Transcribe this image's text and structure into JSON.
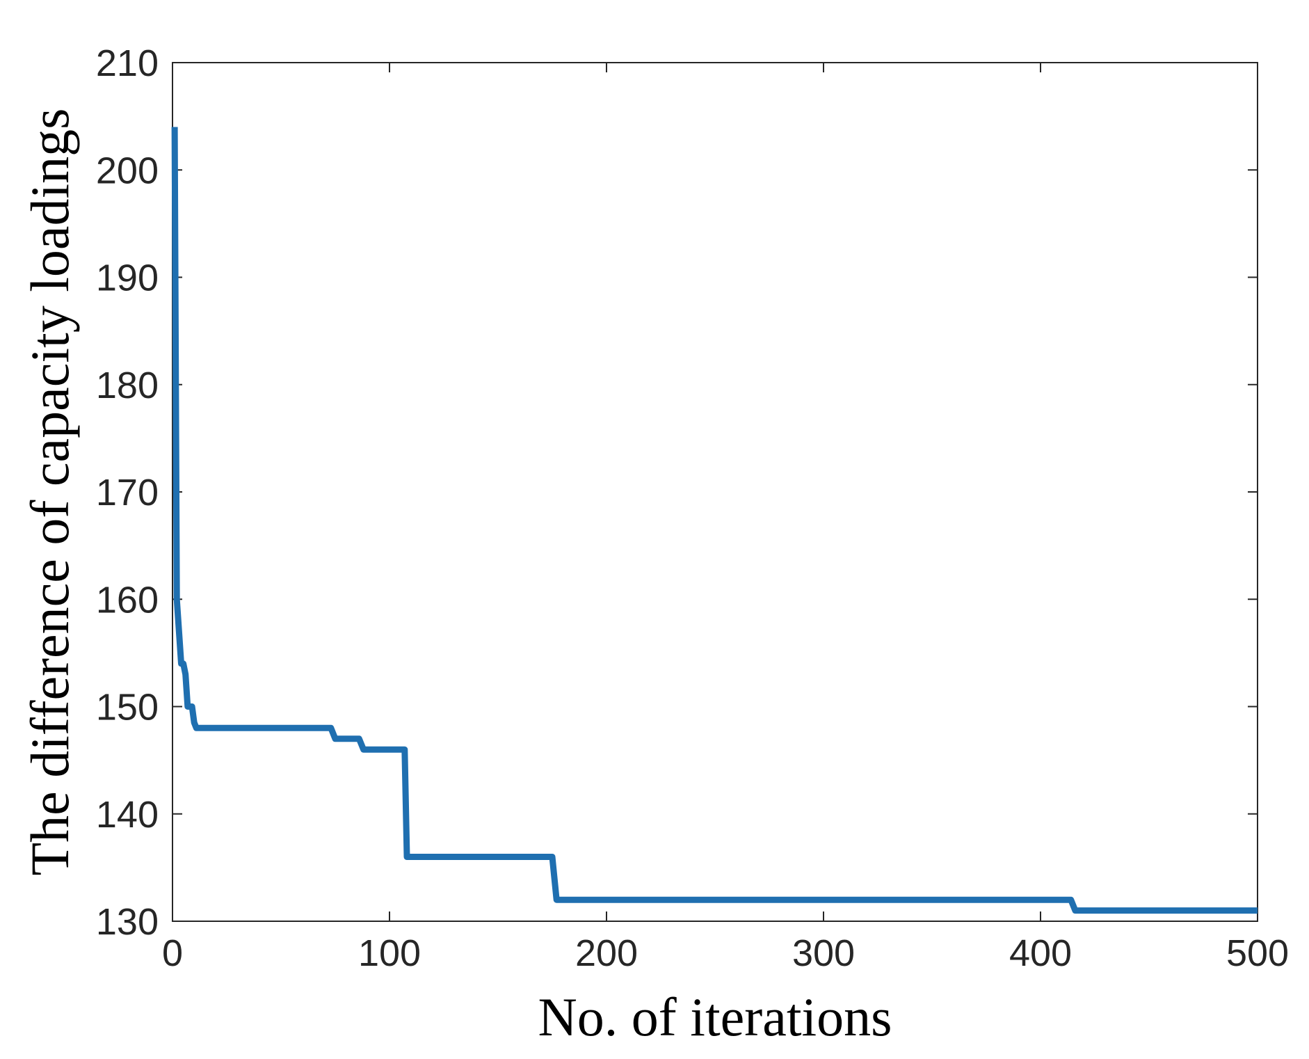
{
  "chart_data": {
    "type": "line",
    "title": "",
    "xlabel": "No. of iterations",
    "ylabel": "The difference of capacity loadings",
    "xlim": [
      0,
      500
    ],
    "ylim": [
      130,
      210
    ],
    "xticks": [
      0,
      100,
      200,
      300,
      400,
      500
    ],
    "yticks": [
      130,
      140,
      150,
      160,
      170,
      180,
      190,
      200,
      210
    ],
    "grid": false,
    "legend": "none",
    "series": [
      {
        "color": "#1f6fb0",
        "points": [
          [
            1,
            204
          ],
          [
            2,
            160
          ],
          [
            4,
            154
          ],
          [
            5,
            154
          ],
          [
            6,
            153
          ],
          [
            7,
            150
          ],
          [
            9,
            150
          ],
          [
            10,
            148.5
          ],
          [
            11,
            148
          ],
          [
            73,
            148
          ],
          [
            75,
            147
          ],
          [
            86,
            147
          ],
          [
            88,
            146
          ],
          [
            107,
            146
          ],
          [
            108,
            136
          ],
          [
            175,
            136
          ],
          [
            177,
            132
          ],
          [
            414,
            132
          ],
          [
            416,
            131
          ],
          [
            500,
            131
          ]
        ]
      }
    ]
  }
}
